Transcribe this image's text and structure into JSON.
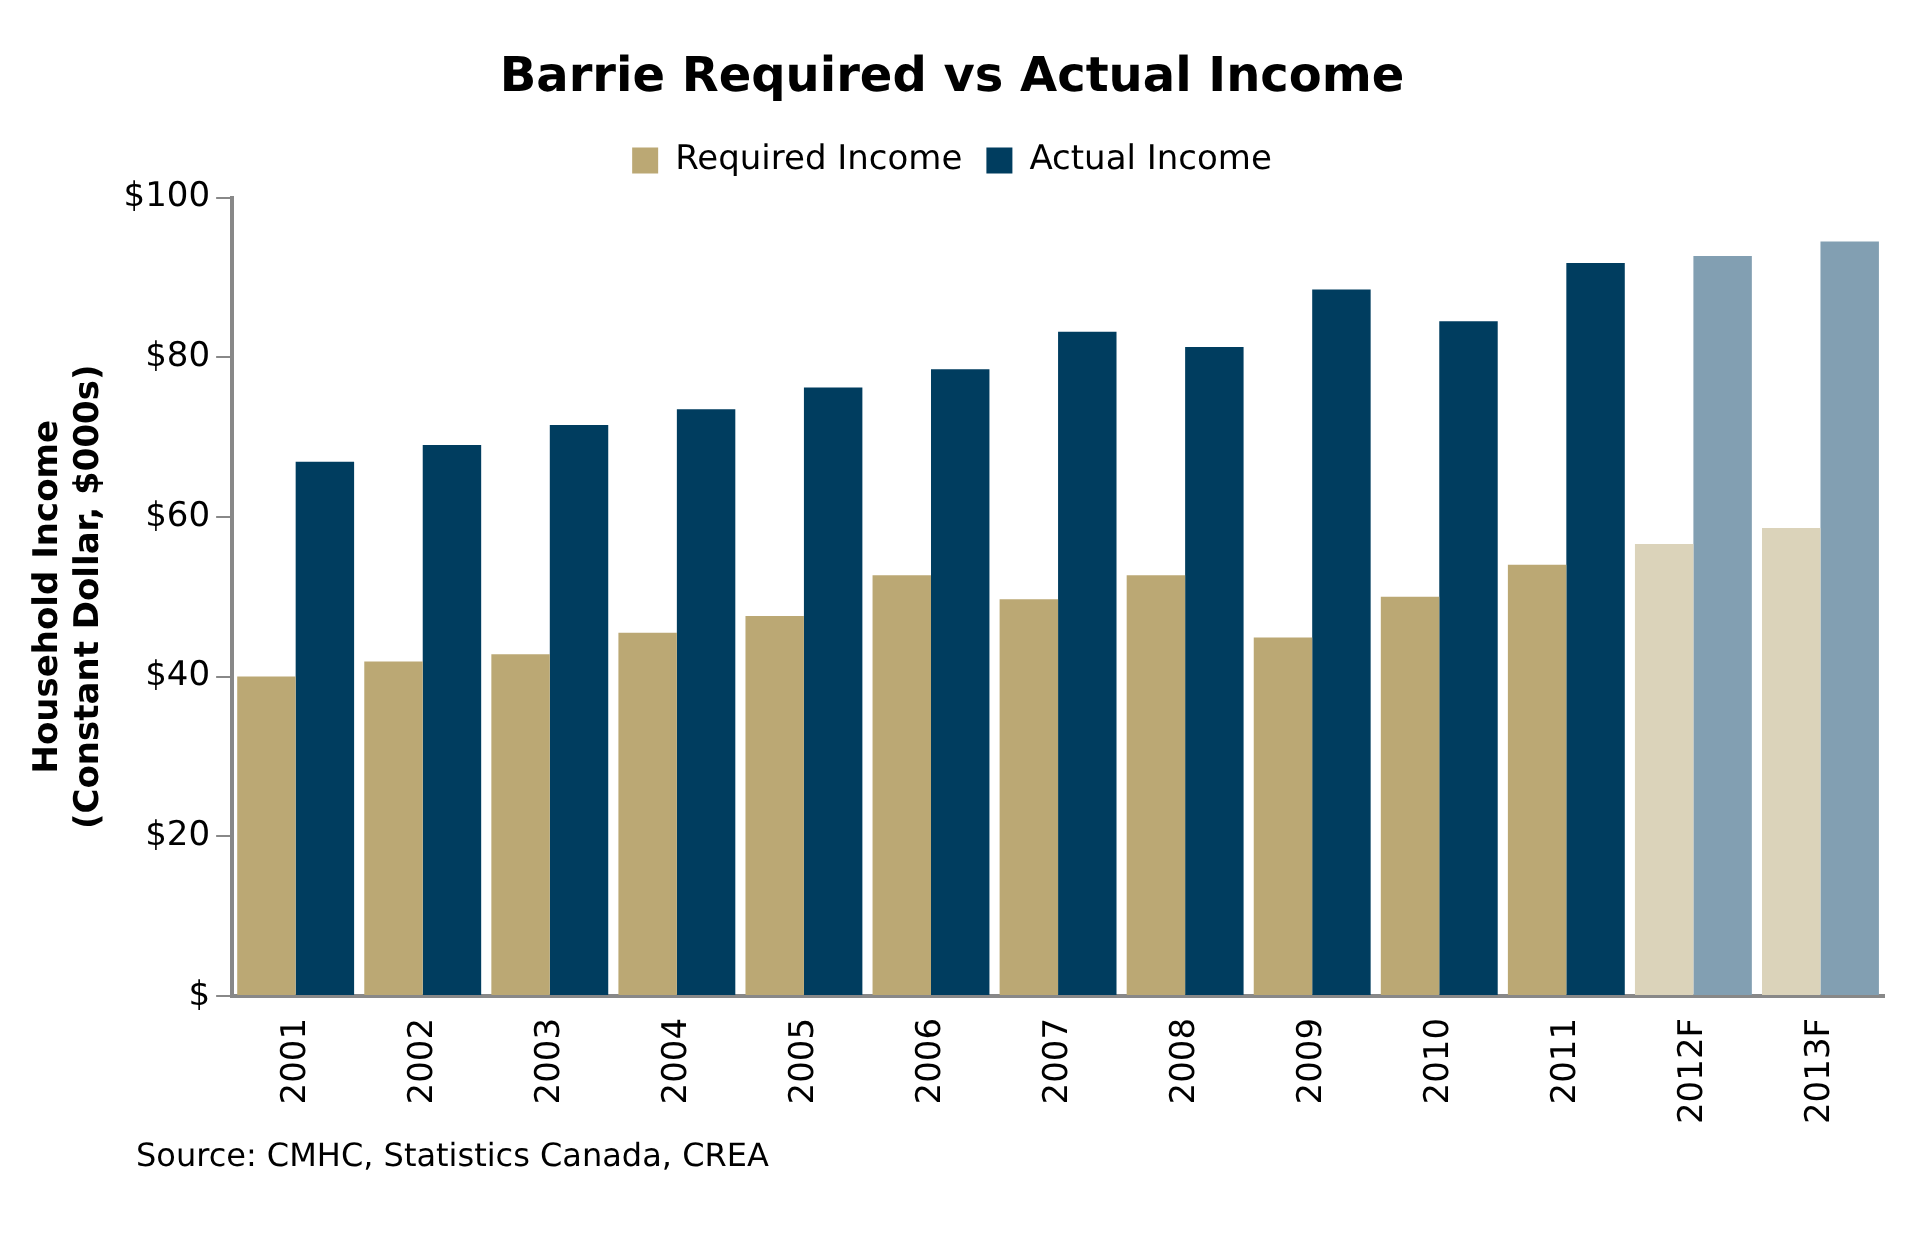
{
  "chart_data": {
    "type": "bar",
    "title": "Barrie Required vs Actual Income",
    "ylabel": "Household Income\n(Constant Dollar, $000s)",
    "categories": [
      "2001",
      "2002",
      "2003",
      "2004",
      "2005",
      "2006",
      "2007",
      "2008",
      "2009",
      "2010",
      "2011",
      "2012F",
      "2013F"
    ],
    "series": [
      {
        "name": "Required Income",
        "color": "#bba874",
        "colors": [
          "#bba874",
          "#bba874",
          "#bba874",
          "#bba874",
          "#bba874",
          "#bba874",
          "#bba874",
          "#bba874",
          "#bba874",
          "#bba874",
          "#bba874",
          "#dbd3ba",
          "#dbd3ba"
        ],
        "values": [
          40.0,
          41.9,
          42.8,
          45.5,
          47.6,
          52.7,
          49.7,
          52.7,
          44.9,
          50.0,
          54.0,
          56.6,
          58.6
        ]
      },
      {
        "name": "Actual Income",
        "color": "#003d5f",
        "colors": [
          "#003d5f",
          "#003d5f",
          "#003d5f",
          "#003d5f",
          "#003d5f",
          "#003d5f",
          "#003d5f",
          "#003d5f",
          "#003d5f",
          "#003d5f",
          "#003d5f",
          "#829fb2",
          "#829fb2"
        ],
        "values": [
          66.9,
          69.0,
          71.5,
          73.5,
          76.2,
          78.5,
          83.2,
          81.3,
          88.5,
          84.5,
          91.8,
          92.7,
          94.5
        ]
      }
    ],
    "ylim": [
      0,
      100
    ],
    "yticks": [
      {
        "value": 0,
        "label": "$"
      },
      {
        "value": 20,
        "label": "$20"
      },
      {
        "value": 40,
        "label": "$40"
      },
      {
        "value": 60,
        "label": "$60"
      },
      {
        "value": 80,
        "label": "$80"
      },
      {
        "value": 100,
        "label": "$100"
      }
    ],
    "grid": false,
    "legend": "top",
    "annotations": [
      "Source: CMHC, Statistics Canada, CREA"
    ]
  }
}
